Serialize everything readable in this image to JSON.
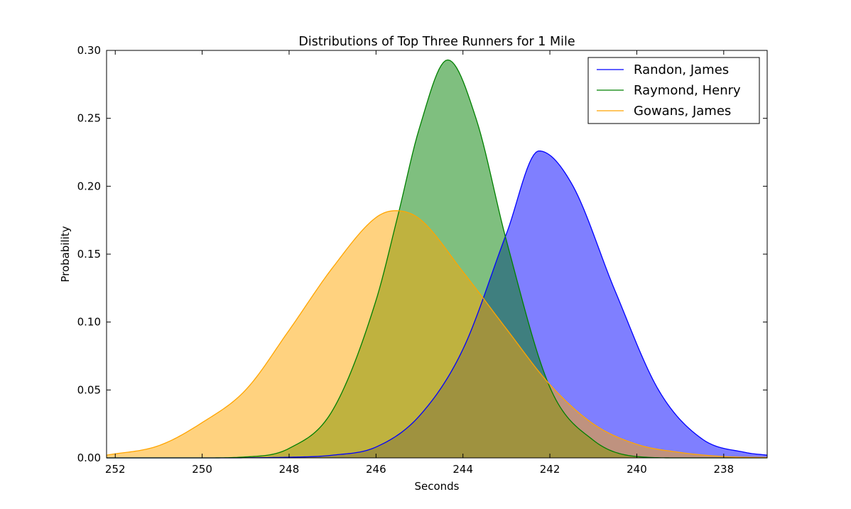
{
  "chart_data": {
    "type": "area",
    "title": "Distributions of Top Three Runners for 1 Mile",
    "xlabel": "Seconds",
    "ylabel": "Probability",
    "xlim": [
      252.2,
      237.0
    ],
    "ylim": [
      0.0,
      0.3
    ],
    "x_inverted": true,
    "xticks": [
      252,
      250,
      248,
      246,
      244,
      242,
      240,
      238
    ],
    "xtick_labels": [
      "252",
      "250",
      "248",
      "246",
      "244",
      "242",
      "240",
      "238"
    ],
    "yticks": [
      0.0,
      0.05,
      0.1,
      0.15,
      0.2,
      0.25,
      0.3
    ],
    "ytick_labels": [
      "0.00",
      "0.05",
      "0.10",
      "0.15",
      "0.20",
      "0.25",
      "0.30"
    ],
    "legend_position": "top-right",
    "grid": false,
    "series": [
      {
        "name": "Randon, James",
        "color": "#0000ff",
        "fill_color": "#0000ff",
        "fill_opacity": 0.5,
        "x": [
          252.2,
          250.0,
          248.0,
          247.0,
          246.0,
          245.0,
          244.0,
          243.0,
          242.25,
          241.5,
          240.5,
          239.5,
          238.5,
          237.5,
          237.0
        ],
        "y": [
          0.0,
          0.0,
          0.0005,
          0.002,
          0.008,
          0.031,
          0.08,
          0.165,
          0.226,
          0.202,
          0.123,
          0.05,
          0.014,
          0.004,
          0.002
        ]
      },
      {
        "name": "Raymond, Henry",
        "color": "#008000",
        "fill_color": "#008000",
        "fill_opacity": 0.5,
        "x": [
          252.2,
          250.0,
          249.0,
          248.0,
          247.0,
          246.0,
          245.5,
          245.0,
          244.35,
          243.7,
          243.0,
          242.0,
          241.0,
          240.0,
          239.0,
          237.0
        ],
        "y": [
          0.0,
          0.0,
          0.0007,
          0.007,
          0.035,
          0.116,
          0.178,
          0.243,
          0.293,
          0.25,
          0.16,
          0.052,
          0.013,
          0.001,
          0.0,
          0.0
        ]
      },
      {
        "name": "Gowans, James",
        "color": "#ffa500",
        "fill_color": "#ffa500",
        "fill_opacity": 0.5,
        "x": [
          252.2,
          251.0,
          250.0,
          249.0,
          248.0,
          247.0,
          246.0,
          245.55,
          245.0,
          244.0,
          243.0,
          242.0,
          241.0,
          240.0,
          239.0,
          238.0,
          237.0
        ],
        "y": [
          0.002,
          0.009,
          0.026,
          0.05,
          0.094,
          0.14,
          0.177,
          0.182,
          0.176,
          0.137,
          0.095,
          0.054,
          0.025,
          0.01,
          0.004,
          0.001,
          0.0003
        ]
      }
    ]
  }
}
